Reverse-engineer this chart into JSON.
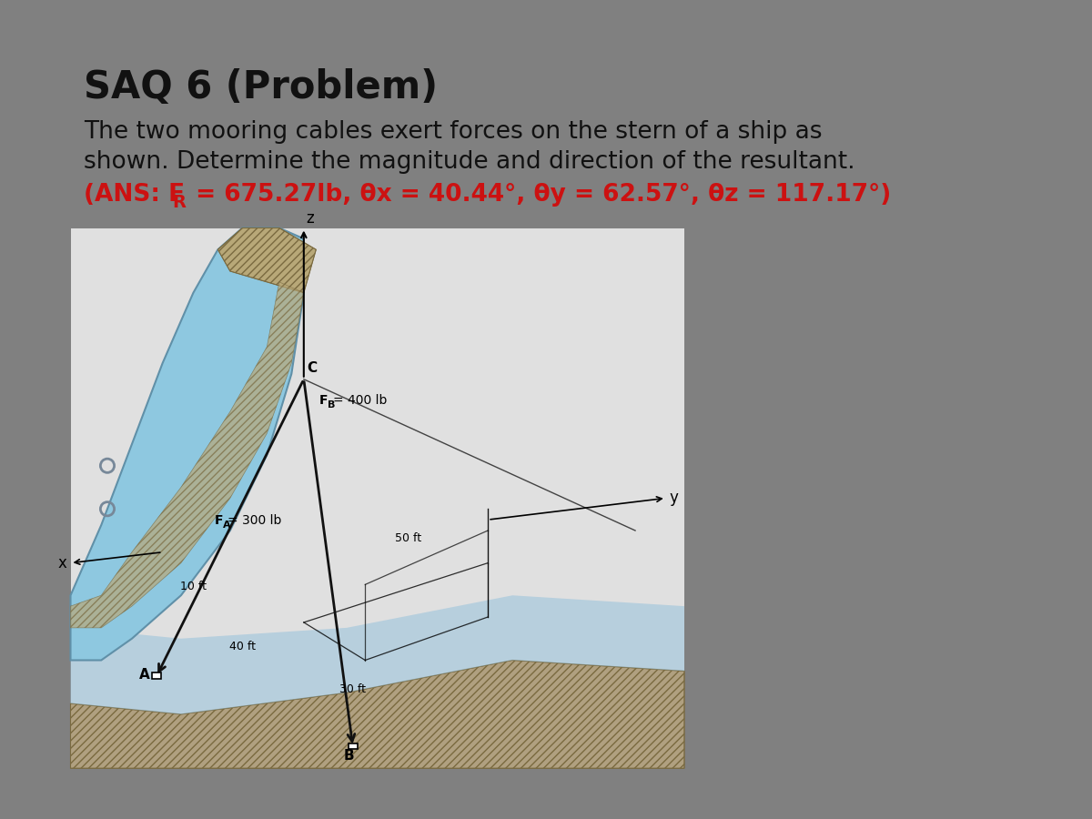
{
  "title": "SAQ 6 (Problem)",
  "desc1": "The two mooring cables exert forces on the stern of a ship as",
  "desc2": "shown. Determine the magnitude and direction of the resultant.",
  "ans1": "(ANS: F",
  "ans_sub": "R",
  "ans2": " = 675.27lb, θx = 40.44°, θy = 62.57°, θz = 117.17°)",
  "label_FA": "F",
  "label_FA_sub": "A",
  "label_FA_val": "= 300 lb",
  "label_FB": "F",
  "label_FB_sub": "B",
  "label_FB_val": "= 400 lb",
  "dim_10": "10 ft",
  "dim_40": "40 ft",
  "dim_50": "50 ft",
  "dim_30": "30 ft",
  "lbl_C": "C",
  "lbl_A": "A",
  "lbl_B": "B",
  "lbl_x": "x",
  "lbl_y": "y",
  "lbl_z": "z",
  "outer_bg": "#808080",
  "slide_bg": "#e6e6e6",
  "diag_bg": "#e0e0e0",
  "title_color": "#111111",
  "body_color": "#111111",
  "ans_color": "#cc1111",
  "ship_hull_color": "#8ec8e0",
  "ship_hull_edge": "#6090a8",
  "hatch_fill": "#b8a878",
  "hatch_edge": "#7a6a40",
  "water_color": "#9cc4dc",
  "ground_color": "#b0a080",
  "title_fs": 30,
  "body_fs": 19,
  "ans_fs": 19
}
